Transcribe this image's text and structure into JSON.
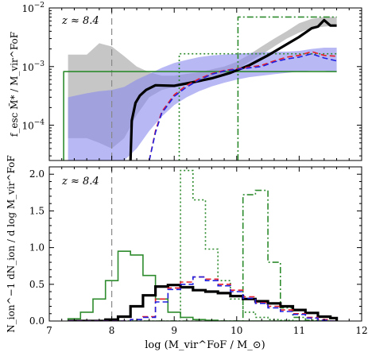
{
  "chart_data": [
    {
      "type": "line",
      "panel": "top",
      "ylabel": "f_esc M̃* / M_vir^FoF",
      "yscale": "log",
      "ylim": [
        2.5e-05,
        0.01
      ],
      "xlim": [
        7,
        12
      ],
      "annotation": "z ≈ 8.4",
      "vline_x": 8.0,
      "yticks": [
        {
          "v": 0.0001,
          "base": "10",
          "exp": "−4"
        },
        {
          "v": 0.001,
          "base": "10",
          "exp": "−3"
        },
        {
          "v": 0.01,
          "base": "10",
          "exp": "−2"
        }
      ],
      "colors": {
        "black": "#000000",
        "blue": "#2020e0",
        "red": "#e8202a",
        "green": "#2e8b2e",
        "gray_band": "#a0a0a0",
        "blue_band": "#8888ee"
      },
      "gray_band": {
        "x": [
          7.3,
          7.6,
          7.8,
          8.0,
          8.2,
          8.4,
          8.6,
          8.8,
          9.0,
          9.2,
          9.4,
          9.6,
          9.8,
          10.0,
          10.2,
          10.4,
          10.6,
          10.8,
          11.0,
          11.2,
          11.4,
          11.6
        ],
        "lo": [
          6e-05,
          6e-05,
          5e-05,
          4e-05,
          6e-05,
          0.00015,
          0.0003,
          0.0004,
          0.00045,
          0.0005,
          0.00055,
          0.00065,
          0.00075,
          0.0009,
          0.0012,
          0.0016,
          0.0022,
          0.003,
          0.0038,
          0.0045,
          0.0048,
          0.005
        ],
        "hi": [
          0.0016,
          0.0016,
          0.0025,
          0.0022,
          0.0015,
          0.001,
          0.0008,
          0.0007,
          0.0007,
          0.00075,
          0.0008,
          0.0009,
          0.001,
          0.0012,
          0.0016,
          0.0022,
          0.003,
          0.004,
          0.0055,
          0.0065,
          0.007,
          0.007
        ]
      },
      "blue_band": {
        "x": [
          7.3,
          7.6,
          7.8,
          8.0,
          8.2,
          8.4,
          8.6,
          8.8,
          9.0,
          9.2,
          9.4,
          9.6,
          9.8,
          10.0,
          10.2,
          10.4,
          10.6,
          10.8,
          11.0,
          11.2,
          11.4,
          11.6
        ],
        "lo": [
          2.5e-05,
          2.5e-05,
          2.5e-05,
          2.5e-05,
          2.5e-05,
          4e-05,
          8e-05,
          0.00014,
          0.00022,
          0.0003,
          0.00038,
          0.00046,
          0.00053,
          0.0006,
          0.00066,
          0.0007,
          0.00074,
          0.00078,
          0.00082,
          0.00085,
          0.00085,
          0.0008
        ],
        "hi": [
          0.0003,
          0.00035,
          0.00038,
          0.0004,
          0.00045,
          0.0006,
          0.00075,
          0.00095,
          0.00115,
          0.0013,
          0.00145,
          0.00155,
          0.0016,
          0.00165,
          0.0017,
          0.00175,
          0.0018,
          0.0018,
          0.00185,
          0.002,
          0.0021,
          0.0021
        ]
      },
      "series": [
        {
          "style": "solid",
          "color": "black",
          "width": 3.2,
          "x": [
            8.3,
            8.32,
            8.38,
            8.45,
            8.55,
            8.7,
            9.0,
            9.3,
            9.6,
            9.9,
            10.2,
            10.5,
            10.8,
            11.0,
            11.2,
            11.3,
            11.4,
            11.5,
            11.6
          ],
          "y": [
            2.5e-05,
            0.00012,
            0.00024,
            0.00032,
            0.0004,
            0.00048,
            0.00047,
            0.00054,
            0.00063,
            0.00078,
            0.00105,
            0.00155,
            0.0024,
            0.0032,
            0.0045,
            0.0048,
            0.0062,
            0.005,
            0.005
          ]
        },
        {
          "style": "dash",
          "color": "red",
          "width": 1.6,
          "x": [
            8.6,
            8.7,
            8.8,
            9.0,
            9.2,
            9.4,
            9.6,
            9.8,
            10.0,
            10.2,
            10.4,
            10.6,
            10.8,
            11.0,
            11.2,
            11.4,
            11.6
          ],
          "y": [
            2.5e-05,
            8e-05,
            0.00017,
            0.00033,
            0.00048,
            0.00062,
            0.00076,
            0.00086,
            0.00092,
            0.00098,
            0.00105,
            0.00125,
            0.00145,
            0.00155,
            0.0018,
            0.00155,
            0.0015
          ]
        },
        {
          "style": "dash",
          "color": "blue",
          "width": 1.6,
          "x": [
            8.6,
            8.7,
            8.8,
            9.0,
            9.2,
            9.4,
            9.6,
            9.8,
            10.0,
            10.2,
            10.4,
            10.6,
            10.8,
            11.0,
            11.2,
            11.4,
            11.6
          ],
          "y": [
            2.5e-05,
            7.5e-05,
            0.00016,
            0.00031,
            0.00045,
            0.00059,
            0.00074,
            0.00084,
            0.0009,
            0.00095,
            0.001,
            0.0012,
            0.00135,
            0.00145,
            0.00165,
            0.0014,
            0.00125
          ]
        },
        {
          "style": "solid",
          "color": "green",
          "width": 1.6,
          "x": [
            7.23,
            7.23,
            11.6
          ],
          "y": [
            2.5e-05,
            0.00082,
            0.00082
          ]
        },
        {
          "style": "dot",
          "color": "green",
          "width": 1.6,
          "x": [
            9.08,
            9.08,
            11.6
          ],
          "y": [
            2.5e-05,
            0.00165,
            0.00165
          ]
        },
        {
          "style": "dashdot",
          "color": "green",
          "width": 1.6,
          "x": [
            10.02,
            10.02,
            11.6
          ],
          "y": [
            2.5e-05,
            0.007,
            0.007
          ]
        }
      ]
    },
    {
      "type": "line",
      "panel": "bottom",
      "xlabel": "log (M_vir^FoF / M_⊙)",
      "ylabel": "N_ion^−1 dN_ion / d log M_vir^FoF",
      "xlim": [
        7,
        12
      ],
      "ylim": [
        0,
        2.1
      ],
      "annotation": "z ≈ 8.4",
      "vline_x": 8.0,
      "xticks": [
        "7",
        "8",
        "9",
        "10",
        "11",
        "12"
      ],
      "yticks": [
        "0.0",
        "0.5",
        "1.0",
        "1.5",
        "2.0"
      ],
      "bin_edges": [
        7.3,
        7.5,
        7.7,
        7.9,
        8.1,
        8.3,
        8.5,
        8.7,
        8.9,
        9.1,
        9.3,
        9.5,
        9.7,
        9.9,
        10.1,
        10.3,
        10.5,
        10.7,
        10.9,
        11.1,
        11.3,
        11.5,
        11.6
      ],
      "series": [
        {
          "style": "solid",
          "color": "green",
          "width": 1.6,
          "values": [
            0.03,
            0.12,
            0.3,
            0.55,
            0.95,
            0.9,
            0.62,
            0.3,
            0.12,
            0.05,
            0.02,
            0.01,
            0,
            0,
            0,
            0,
            0,
            0,
            0,
            0,
            0,
            0
          ]
        },
        {
          "style": "dot",
          "color": "green",
          "width": 1.6,
          "values": [
            0,
            0,
            0,
            0,
            0,
            0,
            0,
            0,
            0,
            2.05,
            1.65,
            0.98,
            0.55,
            0.3,
            0.12,
            0.05,
            0.02,
            0.01,
            0,
            0,
            0,
            0
          ]
        },
        {
          "style": "dashdot",
          "color": "green",
          "width": 1.6,
          "values": [
            0,
            0,
            0,
            0,
            0,
            0,
            0,
            0,
            0,
            0,
            0,
            0,
            0,
            0,
            1.72,
            1.78,
            0.8,
            0.18,
            0.05,
            0.01,
            0,
            0
          ]
        },
        {
          "style": "solid",
          "color": "black",
          "width": 3.2,
          "values": [
            0,
            0,
            0,
            0.02,
            0.06,
            0.2,
            0.35,
            0.47,
            0.49,
            0.46,
            0.42,
            0.4,
            0.38,
            0.34,
            0.3,
            0.27,
            0.24,
            0.2,
            0.15,
            0.11,
            0.06,
            0.04
          ]
        },
        {
          "style": "dash",
          "color": "red",
          "width": 1.6,
          "values": [
            0,
            0,
            0,
            0,
            0,
            0.02,
            0.06,
            0.3,
            0.45,
            0.53,
            0.6,
            0.57,
            0.5,
            0.42,
            0.33,
            0.25,
            0.2,
            0.15,
            0.1,
            0.05,
            0.02,
            0
          ]
        },
        {
          "style": "dash",
          "color": "blue",
          "width": 1.6,
          "values": [
            0,
            0,
            0,
            0,
            0,
            0.02,
            0.05,
            0.26,
            0.43,
            0.5,
            0.6,
            0.55,
            0.48,
            0.4,
            0.31,
            0.24,
            0.18,
            0.13,
            0.09,
            0.04,
            0.01,
            0
          ]
        }
      ]
    }
  ]
}
